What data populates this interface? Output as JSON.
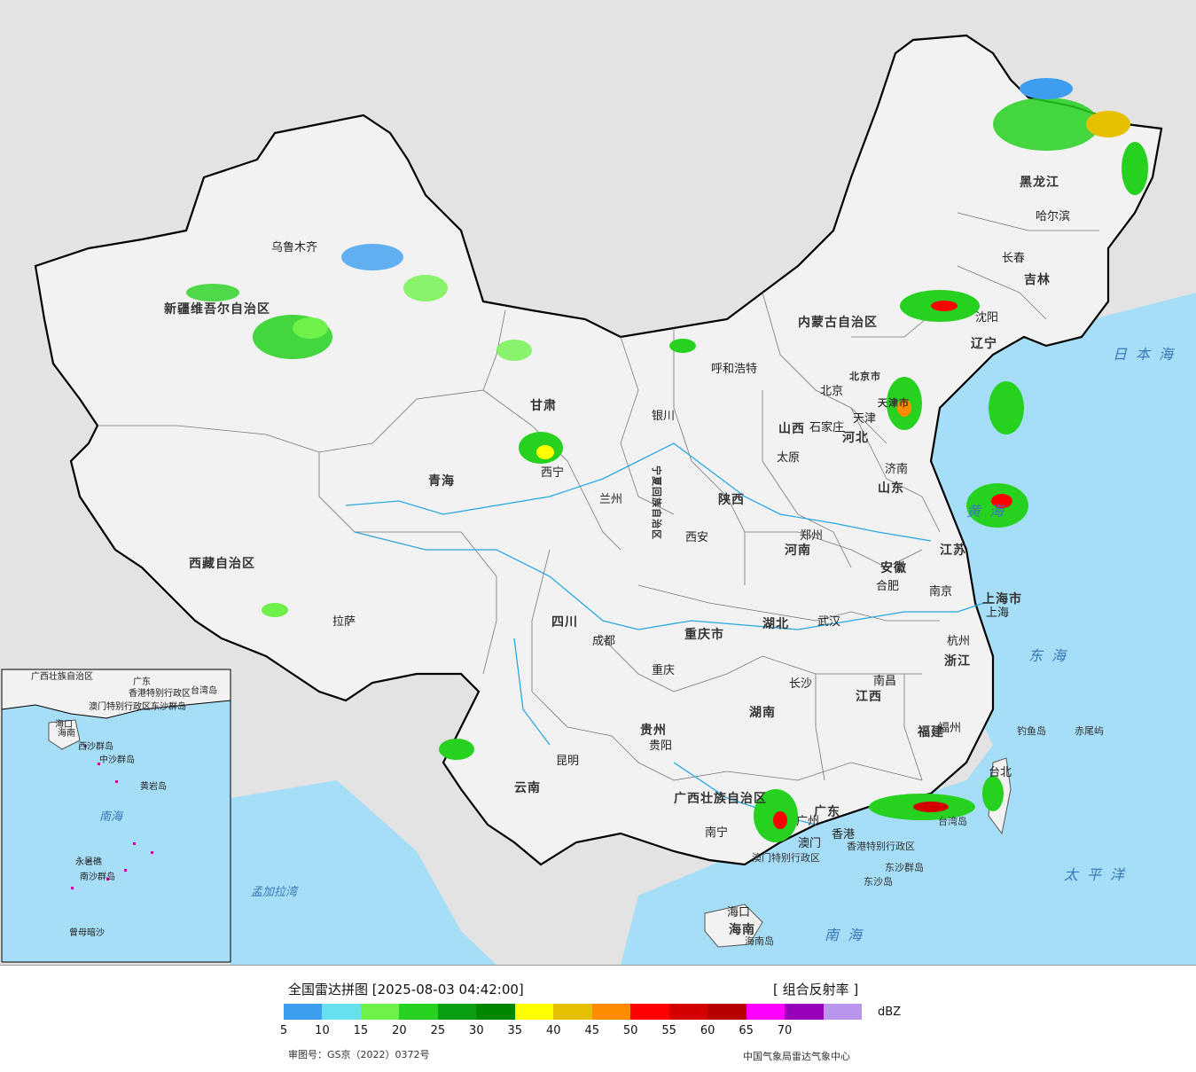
{
  "title": "全国雷达拼图 [2025-08-03 04:42:00]",
  "product": "[ 组合反射率 ]",
  "unit": "dBZ",
  "scale_labels": [
    "5",
    "10",
    "15",
    "20",
    "25",
    "30",
    "35",
    "40",
    "45",
    "50",
    "55",
    "60",
    "65",
    "70"
  ],
  "scale_colors": [
    "#3d9ef0",
    "#66e0ee",
    "#6ef24a",
    "#26d11f",
    "#0a9f12",
    "#008700",
    "#ffff00",
    "#e6c000",
    "#ff8c00",
    "#ff0000",
    "#d40000",
    "#b80000",
    "#ff00ff",
    "#9900bb",
    "#b995ee"
  ],
  "approval": "审图号：GS京（2022）0372号",
  "source": "中国气象局雷达气象中心",
  "map_colors": {
    "sea": "#a6def7",
    "land": "#f2f2f2",
    "foreign": "#e3e3e3"
  },
  "provinces": [
    "新疆维吾尔自治区",
    "西藏自治区",
    "青海",
    "甘肃",
    "内蒙古自治区",
    "黑龙江",
    "吉林",
    "辽宁",
    "河北",
    "山西",
    "山东",
    "江苏",
    "安徽",
    "河南",
    "陕西",
    "宁夏回族自治区",
    "四川",
    "重庆市",
    "湖北",
    "湖南",
    "江西",
    "浙江",
    "福建",
    "广东",
    "广西壮族自治区",
    "贵州",
    "云南",
    "海南",
    "上海市",
    "北京市",
    "天津市"
  ],
  "cities": [
    "乌鲁木齐",
    "拉萨",
    "西宁",
    "兰州",
    "银川",
    "呼和浩特",
    "北京",
    "天津",
    "石家庄",
    "太原",
    "济南",
    "郑州",
    "西安",
    "成都",
    "重庆",
    "武汉",
    "长沙",
    "南昌",
    "合肥",
    "南京",
    "上海",
    "杭州",
    "福州",
    "台北",
    "广州",
    "香港",
    "澳门",
    "南宁",
    "贵阳",
    "昆明",
    "海口",
    "沈阳",
    "长春",
    "哈尔滨"
  ],
  "special_regions": [
    "香港特别行政区",
    "澳门特别行政区",
    "台湾岛",
    "海南岛",
    "钓鱼岛",
    "赤尾屿",
    "东沙群岛",
    "东沙岛"
  ],
  "seas": [
    "日本海",
    "黄海",
    "东海",
    "太平洋",
    "南海",
    "孟加拉湾"
  ],
  "inset_labels": [
    "广西壮族自治区",
    "广东",
    "香港特别行政区",
    "澳门特别行政区",
    "东沙群岛",
    "海南",
    "海口",
    "西沙群岛",
    "中沙群岛",
    "黄岩岛",
    "南海",
    "永暑礁",
    "南沙群岛",
    "曾母暗沙",
    "台湾岛"
  ]
}
